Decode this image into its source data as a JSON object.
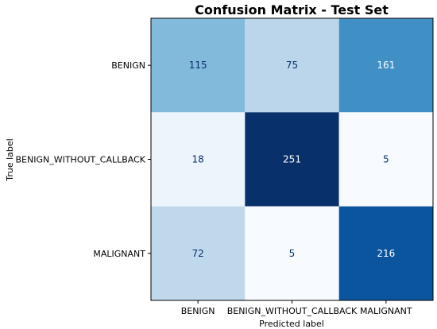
{
  "chart_data": {
    "type": "heatmap",
    "title": "Confusion Matrix - Test Set",
    "xlabel": "Predicted label",
    "ylabel": "True label",
    "x_categories": [
      "BENIGN",
      "BENIGN_WITHOUT_CALLBACK",
      "MALIGNANT"
    ],
    "y_categories": [
      "BENIGN",
      "BENIGN_WITHOUT_CALLBACK",
      "MALIGNANT"
    ],
    "values": [
      [
        115,
        75,
        161
      ],
      [
        18,
        251,
        5
      ],
      [
        72,
        5,
        216
      ]
    ],
    "colormap": "Blues",
    "value_range": [
      5,
      251
    ],
    "grid": false,
    "colors": {
      "dark_text": "#08306b",
      "light_text": "#ffffff"
    }
  }
}
